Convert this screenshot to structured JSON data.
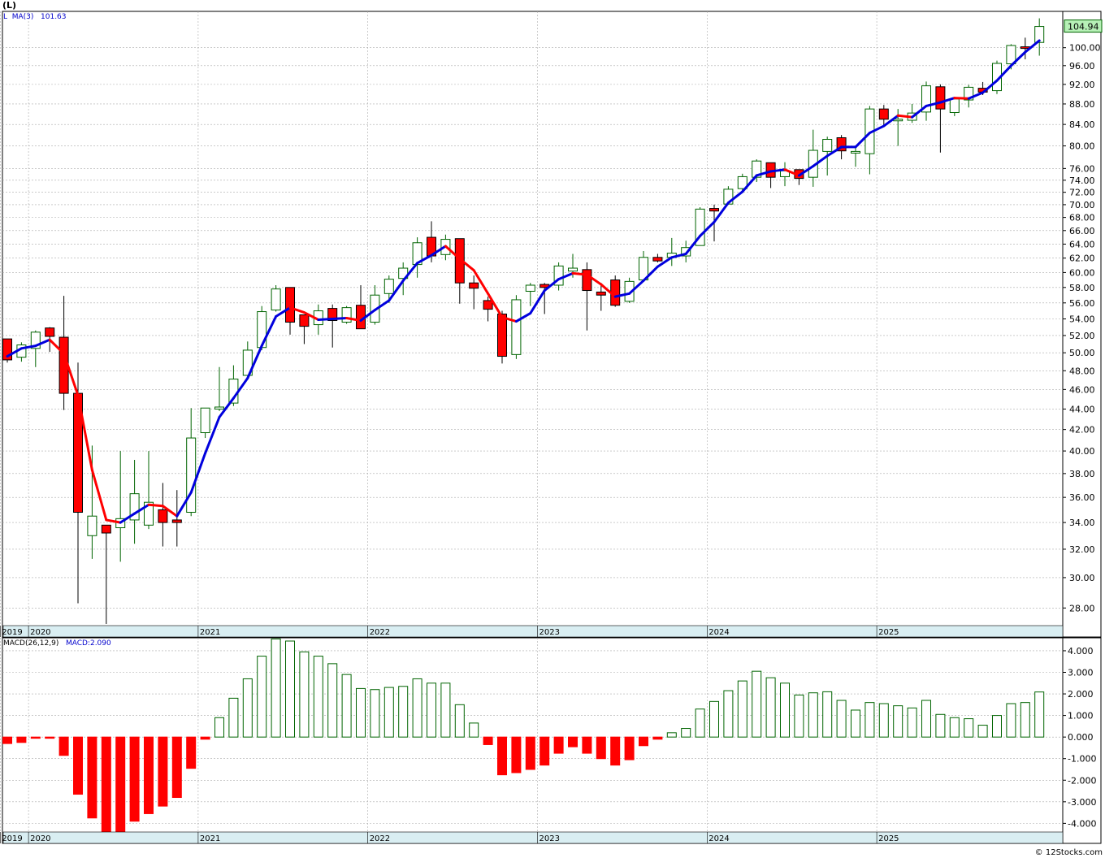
{
  "header": {
    "ticker_label": "(L)"
  },
  "price_panel": {
    "legend_prefix": "L",
    "ma_label": "MA(3)",
    "ma_value": "101.63",
    "last_price": "104.94"
  },
  "macd_panel": {
    "label": "MACD(26,12,9)",
    "value_label": "MACD:2.090"
  },
  "footer": {
    "copyright": "© 12Stocks.com"
  },
  "colors": {
    "up": "#006400",
    "down": "#ff0000",
    "ma_up": "#0000dd",
    "ma_down": "#ff0000",
    "axis_band": "#d9eef2",
    "grid": "#aaaaaa",
    "last_price_box": "#b6f0b6"
  },
  "chart_data": [
    {
      "type": "candlestick",
      "title": "",
      "scale": "log",
      "x_labels": [
        "2019",
        "2020",
        "2021",
        "2022",
        "2023",
        "2024",
        "2025"
      ],
      "y_ticks": [
        28,
        30,
        32,
        34,
        36,
        38,
        40,
        42,
        44,
        46,
        48,
        50,
        52,
        54,
        56,
        58,
        60,
        62,
        64,
        66,
        68,
        70,
        72,
        74,
        76,
        80,
        84,
        88,
        92,
        96,
        100
      ],
      "ylim": [
        26.9,
        108.6
      ],
      "start_month": "2019-11",
      "candles": [
        {
          "o": 51.6,
          "h": 51.6,
          "l": 48.9,
          "c": 49.2
        },
        {
          "o": 49.5,
          "h": 51.2,
          "l": 49.0,
          "c": 50.9
        },
        {
          "o": 50.5,
          "h": 52.6,
          "l": 48.4,
          "c": 52.4
        },
        {
          "o": 52.9,
          "h": 53.0,
          "l": 50.1,
          "c": 51.9
        },
        {
          "o": 51.8,
          "h": 56.9,
          "l": 43.9,
          "c": 45.6
        },
        {
          "o": 45.6,
          "h": 48.9,
          "l": 28.3,
          "c": 34.8
        },
        {
          "o": 33.0,
          "h": 40.5,
          "l": 31.3,
          "c": 34.5
        },
        {
          "o": 33.8,
          "h": 33.8,
          "l": 27.0,
          "c": 33.2
        },
        {
          "o": 33.6,
          "h": 40.0,
          "l": 31.1,
          "c": 34.3
        },
        {
          "o": 34.2,
          "h": 39.2,
          "l": 32.4,
          "c": 36.3
        },
        {
          "o": 33.8,
          "h": 40.0,
          "l": 33.5,
          "c": 35.6
        },
        {
          "o": 35.0,
          "h": 37.2,
          "l": 32.2,
          "c": 34.0
        },
        {
          "o": 34.2,
          "h": 36.6,
          "l": 32.2,
          "c": 34.0
        },
        {
          "o": 34.8,
          "h": 44.1,
          "l": 34.5,
          "c": 41.2
        },
        {
          "o": 41.7,
          "h": 44.1,
          "l": 41.2,
          "c": 44.1
        },
        {
          "o": 44.0,
          "h": 48.4,
          "l": 43.8,
          "c": 44.2
        },
        {
          "o": 44.6,
          "h": 48.6,
          "l": 44.3,
          "c": 47.1
        },
        {
          "o": 47.5,
          "h": 51.3,
          "l": 47.2,
          "c": 50.3
        },
        {
          "o": 50.6,
          "h": 55.6,
          "l": 50.3,
          "c": 54.9
        },
        {
          "o": 55.1,
          "h": 58.3,
          "l": 54.9,
          "c": 57.8
        },
        {
          "o": 58.0,
          "h": 58.0,
          "l": 52.1,
          "c": 53.6
        },
        {
          "o": 54.5,
          "h": 54.5,
          "l": 51.0,
          "c": 53.1
        },
        {
          "o": 53.3,
          "h": 55.8,
          "l": 52.1,
          "c": 55.0
        },
        {
          "o": 55.3,
          "h": 55.8,
          "l": 50.6,
          "c": 53.8
        },
        {
          "o": 53.6,
          "h": 55.6,
          "l": 53.4,
          "c": 55.4
        },
        {
          "o": 55.7,
          "h": 58.3,
          "l": 52.8,
          "c": 52.8
        },
        {
          "o": 53.6,
          "h": 58.3,
          "l": 53.3,
          "c": 57.0
        },
        {
          "o": 57.2,
          "h": 59.6,
          "l": 56.0,
          "c": 59.1
        },
        {
          "o": 59.2,
          "h": 61.4,
          "l": 57.0,
          "c": 60.6
        },
        {
          "o": 61.1,
          "h": 65.0,
          "l": 59.3,
          "c": 64.2
        },
        {
          "o": 65.0,
          "h": 67.4,
          "l": 61.4,
          "c": 62.3
        },
        {
          "o": 62.5,
          "h": 65.4,
          "l": 61.7,
          "c": 64.7
        },
        {
          "o": 64.8,
          "h": 64.8,
          "l": 55.9,
          "c": 58.6
        },
        {
          "o": 58.6,
          "h": 59.6,
          "l": 55.2,
          "c": 57.9
        },
        {
          "o": 56.3,
          "h": 56.8,
          "l": 53.7,
          "c": 55.2
        },
        {
          "o": 54.6,
          "h": 55.0,
          "l": 48.8,
          "c": 49.6
        },
        {
          "o": 49.8,
          "h": 57.0,
          "l": 49.3,
          "c": 56.4
        },
        {
          "o": 57.5,
          "h": 58.6,
          "l": 55.6,
          "c": 58.3
        },
        {
          "o": 58.4,
          "h": 58.6,
          "l": 54.6,
          "c": 58.0
        },
        {
          "o": 58.3,
          "h": 61.4,
          "l": 57.6,
          "c": 60.9
        },
        {
          "o": 60.2,
          "h": 62.6,
          "l": 59.3,
          "c": 60.6
        },
        {
          "o": 60.4,
          "h": 61.4,
          "l": 52.6,
          "c": 57.6
        },
        {
          "o": 57.4,
          "h": 58.6,
          "l": 55.0,
          "c": 57.0
        },
        {
          "o": 59.0,
          "h": 59.6,
          "l": 55.5,
          "c": 55.7
        },
        {
          "o": 56.2,
          "h": 59.3,
          "l": 56.0,
          "c": 58.8
        },
        {
          "o": 59.0,
          "h": 63.0,
          "l": 58.8,
          "c": 62.1
        },
        {
          "o": 62.1,
          "h": 62.6,
          "l": 61.4,
          "c": 61.6
        },
        {
          "o": 62.1,
          "h": 64.9,
          "l": 60.9,
          "c": 62.7
        },
        {
          "o": 62.3,
          "h": 64.5,
          "l": 61.4,
          "c": 63.5
        },
        {
          "o": 63.8,
          "h": 69.6,
          "l": 63.8,
          "c": 69.3
        },
        {
          "o": 69.4,
          "h": 70.0,
          "l": 64.4,
          "c": 69.0
        },
        {
          "o": 70.1,
          "h": 73.0,
          "l": 70.0,
          "c": 72.5
        },
        {
          "o": 72.6,
          "h": 75.1,
          "l": 72.1,
          "c": 74.6
        },
        {
          "o": 74.5,
          "h": 77.6,
          "l": 73.7,
          "c": 77.3
        },
        {
          "o": 77.0,
          "h": 77.0,
          "l": 72.7,
          "c": 74.5
        },
        {
          "o": 74.6,
          "h": 77.1,
          "l": 73.0,
          "c": 75.6
        },
        {
          "o": 75.8,
          "h": 75.8,
          "l": 73.2,
          "c": 74.3
        },
        {
          "o": 74.5,
          "h": 83.0,
          "l": 72.9,
          "c": 79.2
        },
        {
          "o": 79.0,
          "h": 81.7,
          "l": 74.8,
          "c": 81.2
        },
        {
          "o": 81.5,
          "h": 82.0,
          "l": 77.6,
          "c": 79.1
        },
        {
          "o": 78.9,
          "h": 80.0,
          "l": 76.3,
          "c": 79.0
        },
        {
          "o": 78.6,
          "h": 87.6,
          "l": 75.0,
          "c": 87.0
        },
        {
          "o": 87.0,
          "h": 87.8,
          "l": 83.7,
          "c": 85.0
        },
        {
          "o": 84.9,
          "h": 87.0,
          "l": 80.0,
          "c": 85.0
        },
        {
          "o": 84.8,
          "h": 88.0,
          "l": 84.3,
          "c": 86.2
        },
        {
          "o": 86.4,
          "h": 92.6,
          "l": 84.7,
          "c": 91.7
        },
        {
          "o": 91.5,
          "h": 92.0,
          "l": 78.8,
          "c": 87.0
        },
        {
          "o": 86.3,
          "h": 89.4,
          "l": 85.6,
          "c": 89.0
        },
        {
          "o": 88.8,
          "h": 91.9,
          "l": 87.3,
          "c": 91.4
        },
        {
          "o": 91.2,
          "h": 92.5,
          "l": 89.8,
          "c": 90.4
        },
        {
          "o": 90.7,
          "h": 97.1,
          "l": 90.0,
          "c": 96.5
        },
        {
          "o": 96.4,
          "h": 100.8,
          "l": 95.2,
          "c": 100.5
        },
        {
          "o": 100.2,
          "h": 102.3,
          "l": 97.4,
          "c": 99.9
        },
        {
          "o": 101.2,
          "h": 106.9,
          "l": 98.2,
          "c": 104.94
        }
      ],
      "ma3": [
        49.6,
        50.5,
        50.8,
        51.5,
        49.9,
        45.4,
        38.3,
        34.2,
        34.0,
        34.7,
        35.4,
        35.3,
        34.5,
        36.4,
        39.8,
        43.2,
        45.1,
        47.2,
        50.8,
        54.3,
        55.4,
        54.8,
        53.9,
        54.0,
        54.1,
        53.8,
        55.1,
        56.3,
        58.9,
        61.3,
        62.4,
        63.7,
        61.9,
        60.3,
        57.2,
        54.2,
        53.7,
        54.7,
        57.6,
        59.1,
        59.9,
        59.7,
        58.4,
        56.8,
        57.2,
        58.9,
        60.8,
        62.1,
        62.6,
        65.2,
        67.3,
        70.3,
        72.1,
        74.8,
        75.5,
        75.8,
        74.8,
        76.4,
        78.2,
        79.8,
        79.8,
        82.4,
        83.7,
        85.7,
        85.4,
        87.6,
        88.3,
        89.2,
        89.1,
        90.3,
        92.8,
        96.0,
        99.0,
        101.63
      ]
    },
    {
      "type": "bar",
      "title": "",
      "ylim": [
        -4.4,
        4.6
      ],
      "y_ticks": [
        -4,
        -3,
        -2,
        -1,
        0,
        1,
        2,
        3,
        4
      ],
      "values": [
        -0.3,
        -0.25,
        -0.05,
        -0.05,
        -0.85,
        -2.65,
        -3.75,
        -4.5,
        -4.6,
        -3.9,
        -3.55,
        -3.2,
        -2.8,
        -1.45,
        -0.1,
        0.9,
        1.8,
        2.7,
        3.75,
        4.55,
        4.45,
        3.95,
        3.75,
        3.4,
        2.9,
        2.25,
        2.2,
        2.3,
        2.35,
        2.7,
        2.5,
        2.5,
        1.5,
        0.65,
        -0.35,
        -1.75,
        -1.65,
        -1.5,
        -1.3,
        -0.75,
        -0.45,
        -0.75,
        -1.0,
        -1.3,
        -1.05,
        -0.4,
        -0.1,
        0.2,
        0.4,
        1.3,
        1.65,
        2.15,
        2.6,
        3.05,
        2.75,
        2.5,
        1.95,
        2.05,
        2.1,
        1.7,
        1.25,
        1.6,
        1.55,
        1.45,
        1.35,
        1.7,
        1.05,
        0.9,
        0.85,
        0.55,
        1.0,
        1.55,
        1.6,
        2.09
      ]
    }
  ]
}
